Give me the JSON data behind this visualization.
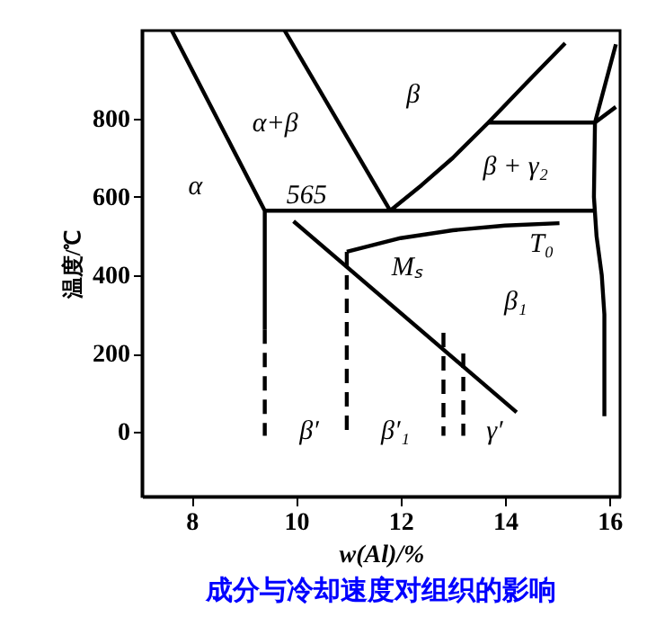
{
  "chart_data": {
    "type": "line",
    "title": "成分与冷却速度对组织的影响",
    "xlabel": "w(Al)/%",
    "ylabel": "温度/℃",
    "xlim": [
      7.05,
      16.2
    ],
    "ylim": [
      -165,
      1025
    ],
    "xticks": [
      8,
      10,
      12,
      14,
      16
    ],
    "yticks": [
      0,
      200,
      400,
      600,
      800
    ],
    "grid": false,
    "series": [
      {
        "color": "#000000",
        "line_style": "solid",
        "x": [
          7.62,
          9.4,
          9.4
        ],
        "values": [
          1025,
          565,
          262
        ]
      },
      {
        "color": "#000000",
        "line_style": "dashed",
        "x": [
          9.4,
          9.4
        ],
        "values": [
          262,
          -10
        ]
      },
      {
        "color": "#000000",
        "line_style": "solid",
        "x": [
          9.4,
          15.7
        ],
        "values": [
          565,
          565
        ]
      },
      {
        "color": "#000000",
        "line_style": "solid",
        "x": [
          9.78,
          11.8
        ],
        "values": [
          1025,
          565
        ]
      },
      {
        "color": "#000000",
        "line_style": "solid",
        "x": [
          11.8,
          12.4,
          13.0,
          13.68,
          14.4,
          15.15
        ],
        "values": [
          565,
          630,
          700,
          790,
          890,
          993
        ]
      },
      {
        "color": "#000000",
        "line_style": "solid",
        "x": [
          13.68,
          15.72,
          16.12
        ],
        "values": [
          790,
          790,
          830
        ]
      },
      {
        "color": "#000000",
        "line_style": "solid",
        "x": [
          16.12,
          15.72,
          15.7,
          15.75,
          15.85,
          15.9,
          15.9
        ],
        "values": [
          990,
          790,
          600,
          500,
          400,
          300,
          40
        ]
      },
      {
        "color": "#000000",
        "line_style": "solid",
        "x": [
          10.97,
          12.0,
          13.0,
          14.0,
          15.04
        ],
        "values": [
          460,
          495,
          515,
          527,
          533
        ]
      },
      {
        "color": "#000000",
        "line_style": "solid",
        "x": [
          9.95,
          14.22
        ],
        "values": [
          538,
          50
        ]
      },
      {
        "color": "#000000",
        "line_style": "dashed",
        "x": [
          10.97,
          10.97
        ],
        "values": [
          460,
          -10
        ]
      },
      {
        "color": "#000000",
        "line_style": "dashed",
        "x": [
          12.82,
          12.82
        ],
        "values": [
          253,
          -10
        ]
      },
      {
        "color": "#000000",
        "line_style": "dashed",
        "x": [
          13.2,
          13.2
        ],
        "values": [
          200,
          -10
        ]
      }
    ],
    "annotations": [
      "α",
      "α+β",
      "β",
      "β + γ₂",
      "565",
      "T₀",
      "Mₛ",
      "β₁",
      "β′",
      "β′₁",
      "γ′"
    ]
  }
}
